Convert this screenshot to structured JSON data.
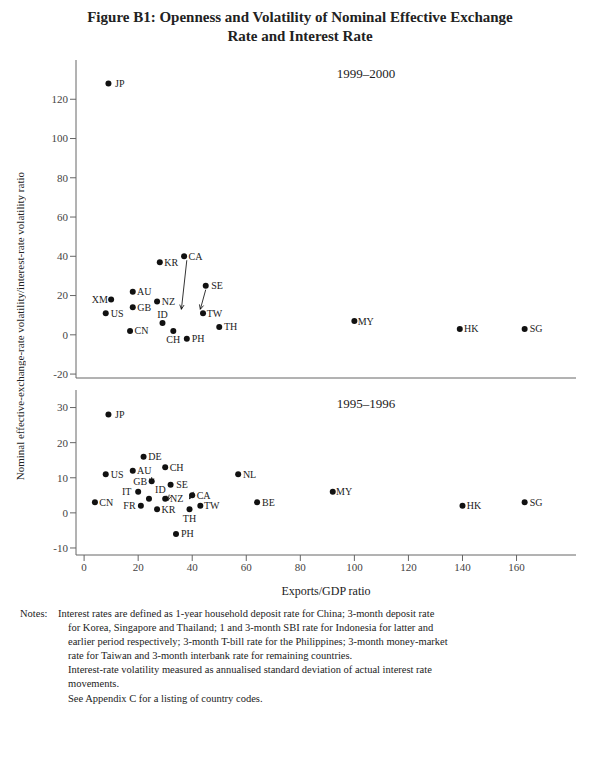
{
  "chart_data": [
    {
      "type": "scatter",
      "title": "Figure B1: Openness and Volatility of Nominal Effective Exchange\nRate and Interest Rate",
      "ylabel": "Nominal effective-exchange-rate volatility/interest-rate volatility ratio",
      "subtitle": "1999–2000",
      "labels": [
        "JP",
        "XM",
        "US",
        "AU",
        "GB",
        "CN",
        "KR",
        "NZ",
        "ID",
        "CA",
        "CH",
        "TW",
        "SE",
        "PH",
        "TH",
        "MY",
        "HK",
        "SG"
      ],
      "x": [
        9,
        10,
        8,
        18,
        18,
        17,
        28,
        27,
        29,
        37,
        33,
        44,
        45,
        38,
        50,
        100,
        139,
        163
      ],
      "values": [
        128,
        18,
        11,
        22,
        14,
        2,
        37,
        17,
        6,
        40,
        2,
        11,
        25,
        -2,
        4,
        7,
        3,
        3
      ],
      "color": "#111111",
      "xlim": [
        -3,
        182
      ],
      "xticks": [
        0,
        20,
        40,
        60,
        80,
        100,
        120,
        140,
        160
      ],
      "ylim": [
        -22,
        140
      ],
      "yticks": [
        -20,
        0,
        20,
        40,
        60,
        80,
        100,
        120
      ],
      "arrows": [
        {
          "x": 36,
          "y": 13,
          "from_x": 38,
          "from_y": 38
        },
        {
          "x": 43,
          "y": 13,
          "from_x": 45,
          "from_y": 23
        }
      ]
    },
    {
      "type": "scatter",
      "subtitle": "1995–1996",
      "xlabel": "Exports/GDP ratio",
      "labels": [
        "JP",
        "US",
        "CN",
        "AU",
        "DE",
        "GB",
        "IT",
        "ID",
        "FR",
        "CH",
        "SE",
        "NZ",
        "KR",
        "NL",
        "CA",
        "TW",
        "TH",
        "PH",
        "BE",
        "MY",
        "HK",
        "SG"
      ],
      "x": [
        9,
        8,
        4,
        18,
        22,
        25,
        20,
        24,
        21,
        30,
        32,
        30,
        27,
        57,
        40,
        43,
        39,
        34,
        64,
        92,
        140,
        163
      ],
      "values": [
        28,
        11,
        3,
        12,
        16,
        9,
        6,
        4,
        2,
        13,
        8,
        4,
        1,
        11,
        5,
        2,
        1,
        -6,
        3,
        6,
        2,
        3
      ],
      "color": "#111111",
      "xlim": [
        -3,
        182
      ],
      "xticks": [
        0,
        20,
        40,
        60,
        80,
        100,
        120,
        140,
        160
      ],
      "ylim": [
        -12,
        35
      ],
      "yticks": [
        -10,
        0,
        10,
        20,
        30
      ],
      "arrows": [
        {
          "x": 25,
          "y": 8.5,
          "from_x": 25,
          "from_y": 10.2
        },
        {
          "x": 31,
          "y": 3.5,
          "from_x": 31.5,
          "from_y": 5.2
        },
        {
          "x": 39,
          "y": 4,
          "from_x": 40.5,
          "from_y": 6
        }
      ],
      "annotations": [
        "Notes:  Interest rates are defined as 1-year household deposit rate for China; 3-month deposit rate\nfor Korea, Singapore and Thailand; 1 and 3-month SBI rate for Indonesia for latter and\nearlier period respectively; 3-month T-bill rate for the Philippines; 3-month money-market\nrate for Taiwan and 3-month interbank rate for remaining countries.\nInterest-rate volatility measured as annualised standard deviation of actual interest rate\nmovements.\nSee Appendix C for a listing of country codes."
      ]
    }
  ]
}
